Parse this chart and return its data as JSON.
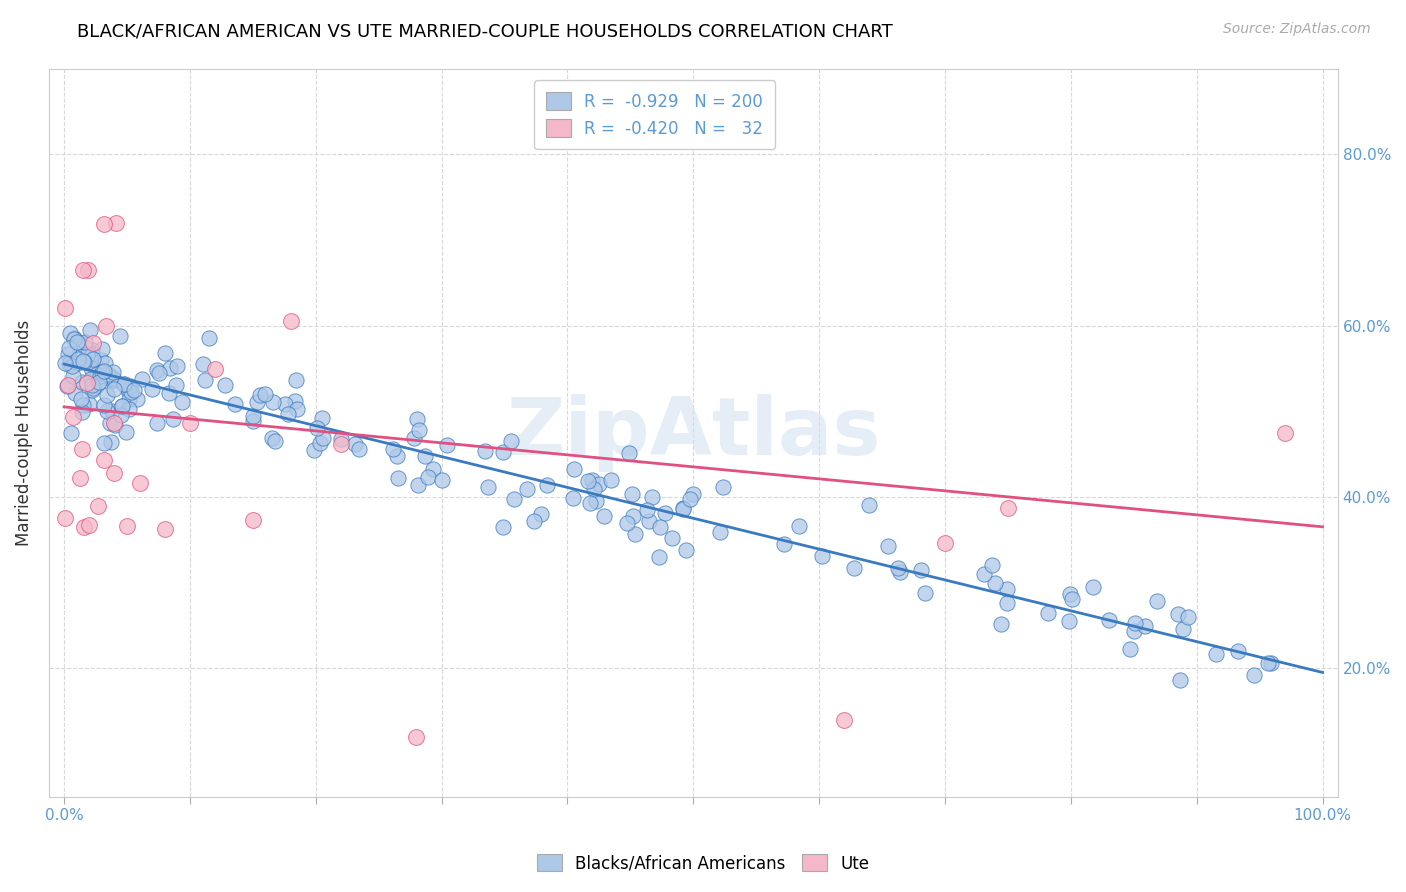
{
  "title": "BLACK/AFRICAN AMERICAN VS UTE MARRIED-COUPLE HOUSEHOLDS CORRELATION CHART",
  "source": "Source: ZipAtlas.com",
  "ylabel": "Married-couple Households",
  "legend_label1": "Blacks/African Americans",
  "legend_label2": "Ute",
  "legend_R1": "-0.929",
  "legend_N1": "200",
  "legend_R2": "-0.420",
  "legend_N2": "32",
  "color_blue": "#aec8e8",
  "color_pink": "#f4b8c8",
  "line_color_blue": "#3a7abf",
  "line_color_pink": "#e05080",
  "watermark": "ZipAtlas",
  "blue_line_start_y": 0.555,
  "blue_line_end_y": 0.195,
  "pink_line_start_y": 0.505,
  "pink_line_end_y": 0.365,
  "ytick_positions": [
    0.2,
    0.4,
    0.6,
    0.8
  ],
  "ytick_labels": [
    "20.0%",
    "40.0%",
    "60.0%",
    "80.0%"
  ],
  "xlim": [
    -0.012,
    1.012
  ],
  "ylim": [
    0.05,
    0.9
  ],
  "title_fontsize": 13,
  "source_fontsize": 10,
  "legend_fontsize": 12,
  "tick_fontsize": 11
}
